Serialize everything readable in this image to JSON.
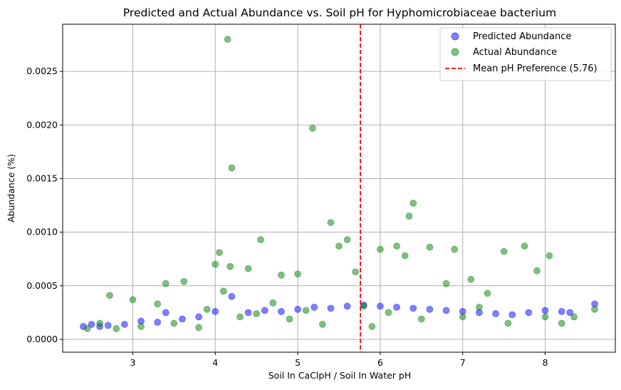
{
  "chart_data": {
    "type": "scatter",
    "title": "Predicted and Actual Abundance vs. Soil pH for Hyphomicrobiaceae bacterium",
    "xlabel": "Soil In CaClpH / Soil In Water pH",
    "ylabel": "Abundance (%)",
    "xlim": [
      2.15,
      8.85
    ],
    "ylim": [
      -0.00012,
      0.00294
    ],
    "x_ticks": [
      "3",
      "4",
      "5",
      "6",
      "7",
      "8"
    ],
    "y_ticks": [
      "0.0000",
      "0.0005",
      "0.0010",
      "0.0015",
      "0.0020",
      "0.0025"
    ],
    "grid": true,
    "legend_position": "top-right",
    "series": [
      {
        "name": "Predicted Abundance",
        "color": "#0000ff",
        "opacity": 0.5,
        "x": [
          2.4,
          2.5,
          2.6,
          2.7,
          2.9,
          3.1,
          3.3,
          3.4,
          3.6,
          3.8,
          4.0,
          4.2,
          4.4,
          4.6,
          4.8,
          5.0,
          5.2,
          5.4,
          5.6,
          5.8,
          6.0,
          6.2,
          6.4,
          6.6,
          6.8,
          7.0,
          7.2,
          7.4,
          7.6,
          7.8,
          8.0,
          8.2,
          8.3,
          8.6
        ],
        "y": [
          0.00012,
          0.00014,
          0.00012,
          0.00013,
          0.00014,
          0.00017,
          0.00016,
          0.00025,
          0.00019,
          0.00021,
          0.00026,
          0.0004,
          0.00025,
          0.00027,
          0.00026,
          0.00028,
          0.0003,
          0.00029,
          0.00031,
          0.00032,
          0.00031,
          0.0003,
          0.00029,
          0.00028,
          0.00027,
          0.00026,
          0.00025,
          0.00024,
          0.00023,
          0.00025,
          0.00027,
          0.00026,
          0.00025,
          0.00033
        ]
      },
      {
        "name": "Actual Abundance",
        "color": "#008000",
        "opacity": 0.5,
        "x": [
          2.45,
          2.6,
          2.72,
          2.8,
          3.0,
          3.1,
          3.3,
          3.4,
          3.5,
          3.62,
          3.8,
          3.9,
          4.0,
          4.05,
          4.1,
          4.15,
          4.18,
          4.2,
          4.3,
          4.4,
          4.5,
          4.55,
          4.7,
          4.8,
          4.9,
          5.0,
          5.1,
          5.18,
          5.3,
          5.4,
          5.5,
          5.6,
          5.7,
          5.8,
          5.9,
          6.0,
          6.1,
          6.2,
          6.3,
          6.35,
          6.4,
          6.5,
          6.6,
          6.8,
          6.9,
          7.0,
          7.1,
          7.2,
          7.3,
          7.5,
          7.55,
          7.75,
          7.9,
          8.0,
          8.05,
          8.2,
          8.35,
          8.6
        ],
        "y": [
          0.0001,
          0.00015,
          0.00041,
          0.0001,
          0.00037,
          0.00012,
          0.00033,
          0.00052,
          0.00015,
          0.00054,
          0.00011,
          0.00028,
          0.0007,
          0.00081,
          0.00045,
          0.0028,
          0.00068,
          0.0016,
          0.00021,
          0.00066,
          0.00024,
          0.00093,
          0.00034,
          0.0006,
          0.00019,
          0.00061,
          0.00027,
          0.00197,
          0.00014,
          0.00109,
          0.00087,
          0.00093,
          0.00063,
          0.00031,
          0.00012,
          0.00084,
          0.00025,
          0.00087,
          0.00078,
          0.00115,
          0.00127,
          0.00019,
          0.00086,
          0.00052,
          0.00084,
          0.00021,
          0.00056,
          0.0003,
          0.00043,
          0.00082,
          0.00015,
          0.00087,
          0.00064,
          0.00021,
          0.00078,
          0.00015,
          0.00021,
          0.00028
        ]
      }
    ],
    "mean_line": {
      "label": "Mean pH Preference (5.76)",
      "x": 5.76,
      "color": "#ff0000",
      "style": "dashed"
    }
  }
}
